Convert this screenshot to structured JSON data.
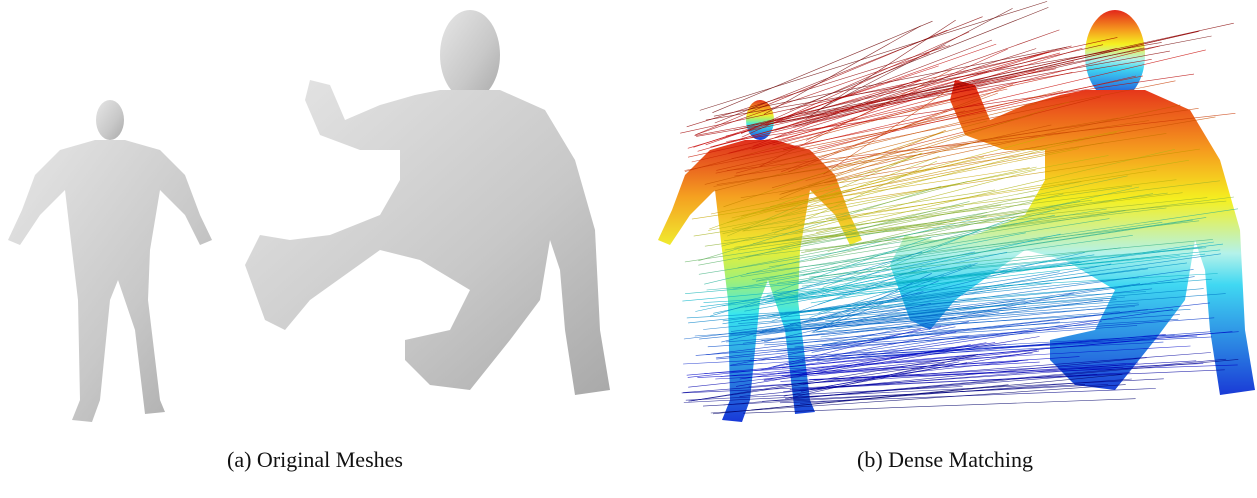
{
  "panels": [
    {
      "caption": "(a) Original Meshes"
    },
    {
      "caption": "(b) Dense Matching"
    }
  ]
}
